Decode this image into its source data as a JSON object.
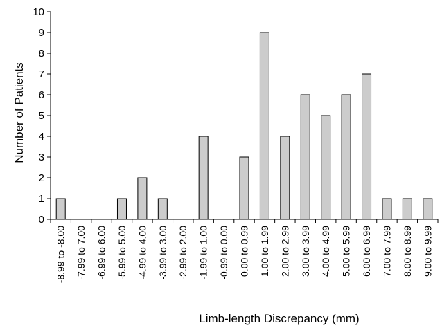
{
  "chart_data": {
    "type": "bar",
    "categories": [
      "-8.99 to -8.00",
      "-7.99 to 7.00",
      "-6.99 to 6.00",
      "-5.99 to 5.00",
      "-4.99 to 4.00",
      "-3.99 to 3.00",
      "-2.99 to 2.00",
      "-1.99 to 1.00",
      "-0.99 to 0.00",
      "0.00 to 0.99",
      "1.00 to 1.99",
      "2.00 to 2.99",
      "3.00 to 3.99",
      "4.00 to 4.99",
      "5.00 to 5.99",
      "6.00 to 6.99",
      "7.00 to 7.99",
      "8.00 to 8.99",
      "9.00 to 9.99"
    ],
    "values": [
      1,
      0,
      0,
      1,
      2,
      1,
      0,
      4,
      0,
      3,
      9,
      4,
      6,
      5,
      6,
      7,
      1,
      1,
      1
    ],
    "xlabel": "Limb-length Discrepancy (mm)",
    "ylabel": "Number of Patients",
    "ylim": [
      0,
      10
    ],
    "yticks": [
      0,
      1,
      2,
      3,
      4,
      5,
      6,
      7,
      8,
      9,
      10
    ],
    "grid": false,
    "legend": "none",
    "colors": {
      "bar_fill": "#cccccc",
      "bar_stroke": "#000000",
      "axis": "#000000"
    }
  }
}
